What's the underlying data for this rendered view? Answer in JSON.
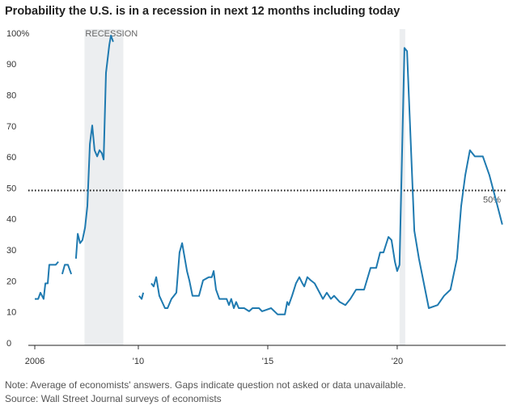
{
  "chart_data": {
    "type": "line",
    "title": "Probability the U.S. is in a recession in next 12 months including today",
    "note": "Note: Average of economists' answers. Gaps indicate question not asked or data unavailable.",
    "source": "Source: Wall Street Journal surveys of economists",
    "recession_label": "RECESSION",
    "recessions": [
      [
        2007.92,
        2009.42
      ],
      [
        2020.09,
        2020.31
      ]
    ],
    "recession_color": "#eceef0",
    "reference_line": {
      "value": 50,
      "label": "50%"
    },
    "xlim": [
      2005.75,
      2024.19
    ],
    "xticks": [
      {
        "value": 2006,
        "label": "2006"
      },
      {
        "value": 2010,
        "label": "'10"
      },
      {
        "value": 2015,
        "label": "'15"
      },
      {
        "value": 2020,
        "label": "'20"
      }
    ],
    "ylim": [
      0,
      100
    ],
    "yticks": [
      0,
      10,
      20,
      30,
      40,
      50,
      60,
      70,
      80,
      90,
      {
        "value": 100,
        "label": "100%"
      }
    ],
    "grid": false,
    "x": [
      2006.0,
      2006.13,
      2006.22,
      2006.34,
      2006.41,
      2006.5,
      2006.56,
      2006.72,
      2006.81,
      2006.91,
      2006.98,
      2007.06,
      2007.16,
      2007.28,
      2007.41,
      2007.5,
      2007.59,
      2007.66,
      2007.75,
      2007.84,
      2007.94,
      2008.03,
      2008.13,
      2008.22,
      2008.31,
      2008.41,
      2008.5,
      2008.59,
      2008.66,
      2008.75,
      2008.88,
      2008.94,
      2009.03,
      2009.5,
      2010.03,
      2010.13,
      2010.19,
      2010.3,
      2010.5,
      2010.59,
      2010.69,
      2010.81,
      2011.03,
      2011.13,
      2011.28,
      2011.47,
      2011.59,
      2011.69,
      2011.88,
      2011.97,
      2012.09,
      2012.34,
      2012.5,
      2012.72,
      2012.84,
      2012.91,
      2013.0,
      2013.13,
      2013.41,
      2013.5,
      2013.59,
      2013.69,
      2013.78,
      2013.88,
      2014.09,
      2014.28,
      2014.41,
      2014.66,
      2014.78,
      2015.13,
      2015.38,
      2015.66,
      2015.75,
      2015.81,
      2015.94,
      2016.09,
      2016.22,
      2016.34,
      2016.41,
      2016.53,
      2016.66,
      2016.81,
      2017.0,
      2017.13,
      2017.28,
      2017.44,
      2017.56,
      2017.78,
      2018.0,
      2018.19,
      2018.41,
      2018.72,
      2018.97,
      2019.19,
      2019.34,
      2019.47,
      2019.66,
      2019.78,
      2019.91,
      2020.0,
      2020.09,
      2020.28,
      2020.38,
      2020.66,
      2020.84,
      2021.22,
      2021.56,
      2021.81,
      2022.06,
      2022.31,
      2022.47,
      2022.63,
      2022.81,
      2023.0,
      2023.31,
      2023.56,
      2023.78,
      2024.06
    ],
    "series": [
      {
        "color": "#1f7ab0",
        "values": [
          15,
          15,
          17,
          15,
          20,
          20,
          26,
          26,
          26,
          27,
          null,
          23,
          26,
          26,
          23,
          null,
          28,
          36,
          33,
          34,
          38,
          45,
          65,
          71,
          63,
          61,
          63,
          62,
          60,
          88,
          97,
          100,
          98,
          null,
          16,
          15,
          17,
          null,
          20,
          19,
          22,
          16,
          12,
          12,
          15,
          17,
          30,
          33,
          24,
          21,
          16,
          16,
          21,
          22,
          22,
          24,
          18,
          15,
          15,
          13,
          15,
          12,
          14,
          12,
          12,
          11,
          12,
          12,
          11,
          12,
          10,
          10,
          14,
          13,
          16,
          20,
          22,
          20,
          19,
          22,
          21,
          20,
          17,
          15,
          17,
          15,
          16,
          14,
          13,
          15,
          18,
          18,
          25,
          25,
          30,
          30,
          35,
          34,
          27,
          24,
          26,
          96,
          95,
          37,
          28,
          12,
          13,
          16,
          18,
          28,
          45,
          55,
          63,
          61,
          61,
          55,
          48,
          39
        ]
      }
    ]
  }
}
